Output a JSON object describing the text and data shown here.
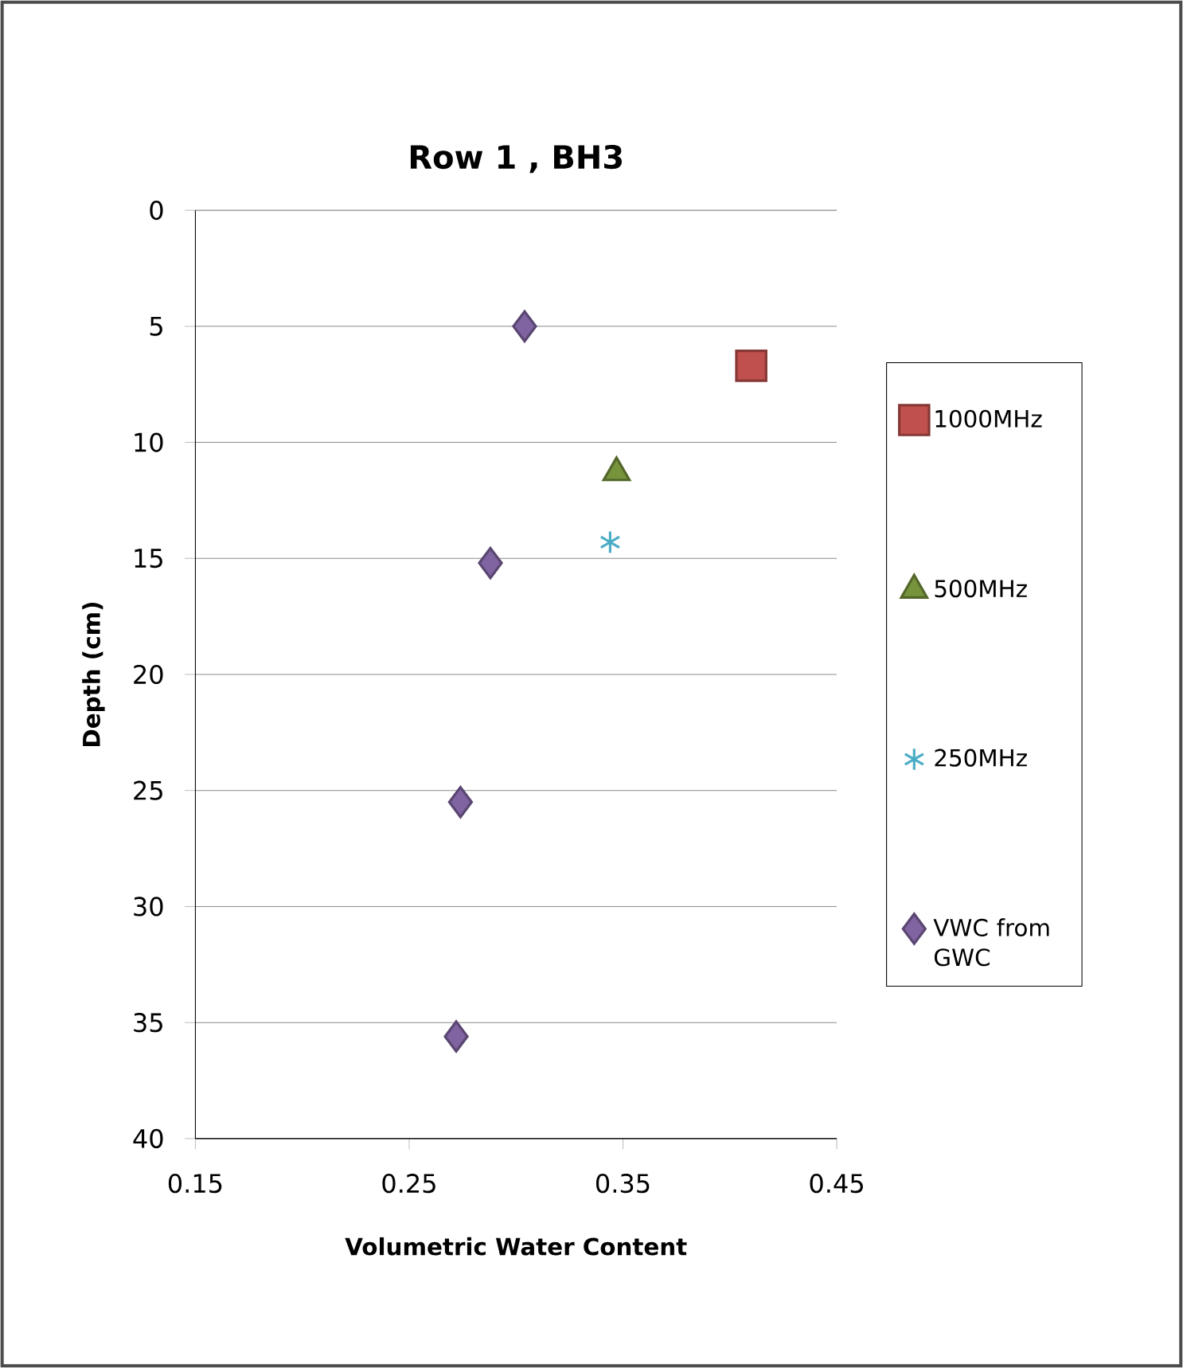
{
  "chart_data": {
    "type": "scatter",
    "title": "Row 1 , BH3",
    "xlabel": "Volumetric Water Content",
    "ylabel": "Depth (cm)",
    "xlim": [
      0.15,
      0.45
    ],
    "xticks": [
      0.15,
      0.25,
      0.35,
      0.45
    ],
    "ylim": [
      40,
      0
    ],
    "yticks": [
      0,
      5,
      10,
      15,
      20,
      25,
      30,
      35,
      40
    ],
    "grid": "y",
    "legend": "right",
    "series": [
      {
        "name": "1000MHz",
        "color": "#c0504d",
        "marker": "square",
        "x": [
          0.41
        ],
        "values": [
          6.7
        ]
      },
      {
        "name": "500MHz",
        "color": "#77933c",
        "marker": "triangle",
        "x": [
          0.347
        ],
        "values": [
          11.3
        ]
      },
      {
        "name": "250MHz",
        "color": "#4bacc6",
        "marker": "cross",
        "x": [
          0.344
        ],
        "values": [
          14.3
        ]
      },
      {
        "name": "VWC from GWC",
        "color": "#8064a2",
        "marker": "diamond",
        "x": [
          0.304,
          0.288,
          0.274,
          0.272
        ],
        "values": [
          5.0,
          15.2,
          25.5,
          35.6
        ]
      }
    ]
  }
}
